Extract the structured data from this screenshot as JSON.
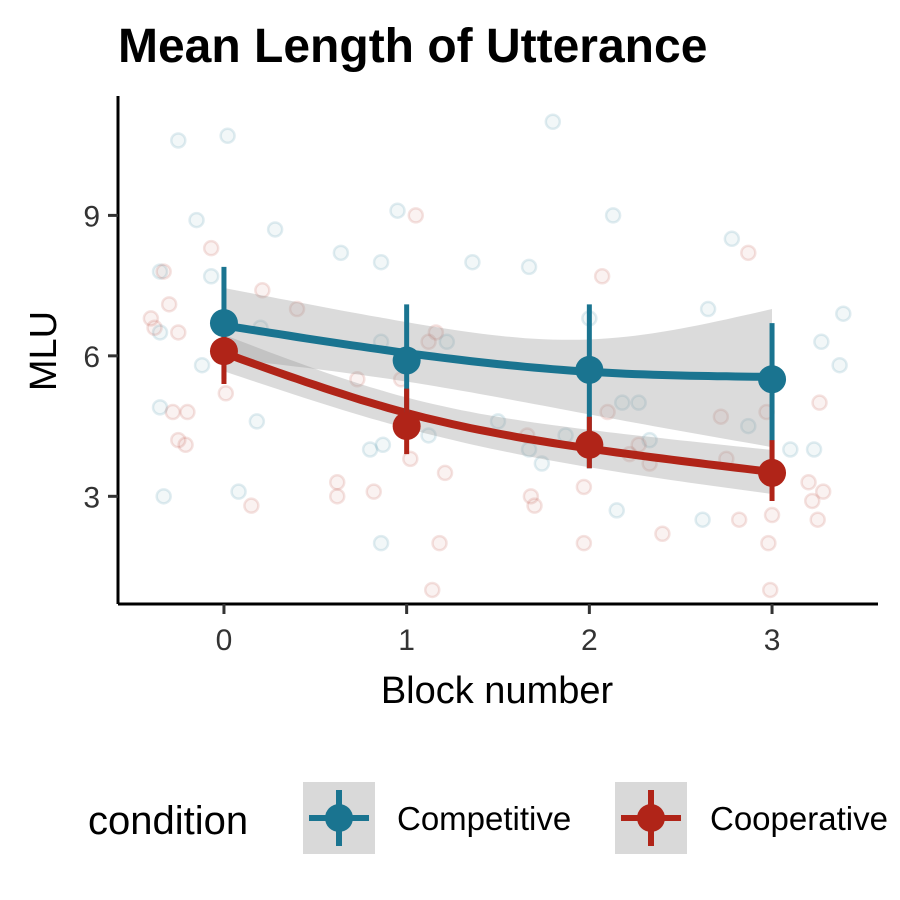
{
  "chart_data": {
    "type": "line",
    "title": "Mean Length of Utterance",
    "xlabel": "Block number",
    "ylabel": "MLU",
    "x": [
      0,
      1,
      2,
      3
    ],
    "x_tick_labels": [
      "0",
      "1",
      "2",
      "3"
    ],
    "y_ticks": [
      3,
      6,
      9
    ],
    "y_tick_labels": [
      "3",
      "6",
      "9"
    ],
    "xlim": [
      -0.58,
      3.58
    ],
    "ylim": [
      0.7,
      11.55
    ],
    "grid": false,
    "legend": {
      "title": "condition",
      "position": "bottom"
    },
    "series": [
      {
        "name": "Competitive",
        "color": "#1a7490",
        "means": [
          6.7,
          5.9,
          5.7,
          5.5
        ],
        "error_low": [
          5.5,
          4.7,
          3.6,
          3.2
        ],
        "error_high": [
          7.9,
          7.1,
          7.1,
          6.7
        ],
        "smooth": [
          6.65,
          6.06,
          5.66,
          5.55
        ],
        "ci_low": [
          5.95,
          5.45,
          4.75,
          4.05
        ],
        "ci_high": [
          7.45,
          6.72,
          6.35,
          7.0
        ],
        "raw_points": [
          [
            -0.25,
            10.6
          ],
          [
            0.02,
            10.7
          ],
          [
            -0.15,
            8.9
          ],
          [
            0.28,
            8.7
          ],
          [
            -0.35,
            7.8
          ],
          [
            -0.07,
            7.7
          ],
          [
            -0.35,
            6.5
          ],
          [
            0.2,
            6.6
          ],
          [
            -0.12,
            5.8
          ],
          [
            -0.35,
            4.9
          ],
          [
            0.18,
            4.6
          ],
          [
            -0.33,
            3.0
          ],
          [
            0.08,
            3.1
          ],
          [
            0.64,
            8.2
          ],
          [
            0.86,
            8.0
          ],
          [
            0.95,
            9.1
          ],
          [
            1.36,
            8.0
          ],
          [
            0.86,
            6.3
          ],
          [
            1.22,
            6.3
          ],
          [
            0.87,
            4.1
          ],
          [
            0.8,
            4.0
          ],
          [
            1.12,
            4.3
          ],
          [
            1.5,
            4.6
          ],
          [
            0.86,
            2.0
          ],
          [
            1.8,
            11.0
          ],
          [
            1.67,
            7.9
          ],
          [
            2.13,
            9.0
          ],
          [
            2.0,
            6.8
          ],
          [
            2.18,
            5.0
          ],
          [
            1.87,
            4.3
          ],
          [
            2.27,
            5.0
          ],
          [
            2.33,
            4.2
          ],
          [
            1.67,
            4.0
          ],
          [
            2.15,
            2.7
          ],
          [
            1.74,
            3.7
          ],
          [
            2.78,
            8.5
          ],
          [
            2.65,
            7.0
          ],
          [
            2.87,
            4.5
          ],
          [
            3.1,
            4.0
          ],
          [
            3.23,
            4.0
          ],
          [
            3.27,
            6.3
          ],
          [
            3.39,
            6.9
          ],
          [
            3.37,
            5.8
          ],
          [
            2.62,
            2.5
          ]
        ]
      },
      {
        "name": "Cooperative",
        "color": "#b02418",
        "means": [
          6.1,
          4.5,
          4.1,
          3.5
        ],
        "error_low": [
          5.4,
          3.9,
          3.6,
          2.9
        ],
        "error_high": [
          6.8,
          5.3,
          4.7,
          4.2
        ],
        "smooth": [
          6.06,
          4.78,
          4.02,
          3.52
        ],
        "ci_low": [
          5.67,
          4.45,
          3.62,
          3.05
        ],
        "ci_high": [
          6.45,
          5.11,
          4.42,
          3.99
        ],
        "raw_points": [
          [
            -0.07,
            8.3
          ],
          [
            -0.33,
            7.8
          ],
          [
            -0.3,
            7.1
          ],
          [
            -0.38,
            6.6
          ],
          [
            -0.25,
            6.5
          ],
          [
            -0.4,
            6.8
          ],
          [
            0.21,
            7.4
          ],
          [
            0.4,
            7.0
          ],
          [
            -0.28,
            4.8
          ],
          [
            -0.2,
            4.8
          ],
          [
            -0.25,
            4.2
          ],
          [
            -0.21,
            4.1
          ],
          [
            0.01,
            5.2
          ],
          [
            0.15,
            2.8
          ],
          [
            0.62,
            3.3
          ],
          [
            0.62,
            3.0
          ],
          [
            0.82,
            3.1
          ],
          [
            0.73,
            5.5
          ],
          [
            0.97,
            5.5
          ],
          [
            1.05,
            9.0
          ],
          [
            1.16,
            6.5
          ],
          [
            1.12,
            6.3
          ],
          [
            1.02,
            3.8
          ],
          [
            1.21,
            3.5
          ],
          [
            1.18,
            2.0
          ],
          [
            1.14,
            1.0
          ],
          [
            1.66,
            4.3
          ],
          [
            1.68,
            3.0
          ],
          [
            1.7,
            2.8
          ],
          [
            1.97,
            3.2
          ],
          [
            1.97,
            2.0
          ],
          [
            2.07,
            7.7
          ],
          [
            2.1,
            4.8
          ],
          [
            2.22,
            3.9
          ],
          [
            2.27,
            4.1
          ],
          [
            2.33,
            3.7
          ],
          [
            2.4,
            2.2
          ],
          [
            2.72,
            4.7
          ],
          [
            2.75,
            3.8
          ],
          [
            2.82,
            2.5
          ],
          [
            2.87,
            8.2
          ],
          [
            2.97,
            4.8
          ],
          [
            2.98,
            2.0
          ],
          [
            2.99,
            1.0
          ],
          [
            3.0,
            2.6
          ],
          [
            3.2,
            3.3
          ],
          [
            3.22,
            2.9
          ],
          [
            3.25,
            2.5
          ],
          [
            3.26,
            5.0
          ],
          [
            3.28,
            3.1
          ]
        ]
      }
    ]
  }
}
